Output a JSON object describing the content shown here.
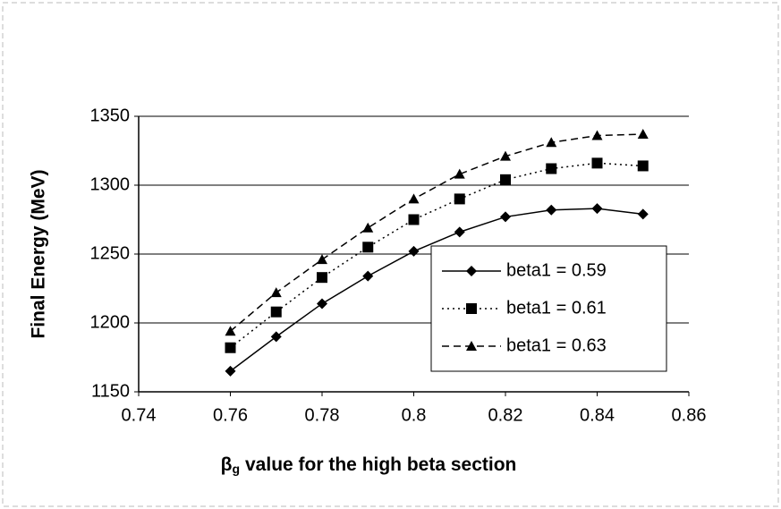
{
  "chart_data": {
    "type": "line",
    "y_label": "Final Energy (MeV)",
    "x_label": {
      "symbol": "β",
      "subscript": "g",
      "text": "value for the high beta section"
    },
    "x": [
      0.76,
      0.77,
      0.78,
      0.79,
      0.8,
      0.81,
      0.82,
      0.83,
      0.84,
      0.85
    ],
    "series": [
      {
        "name": "beta1 = 0.59",
        "color": "#000000",
        "line_style": "solid",
        "marker": "diamond",
        "values": [
          1165,
          1190,
          1214,
          1234,
          1252,
          1266,
          1277,
          1282,
          1283,
          1279
        ]
      },
      {
        "name": "beta1 = 0.61",
        "color": "#000000",
        "line_style": "dotted",
        "marker": "square",
        "values": [
          1182,
          1208,
          1233,
          1255,
          1275,
          1290,
          1304,
          1312,
          1316,
          1314
        ]
      },
      {
        "name": "beta1 = 0.63",
        "color": "#000000",
        "line_style": "dashed",
        "marker": "triangle",
        "values": [
          1194,
          1222,
          1246,
          1269,
          1290,
          1308,
          1321,
          1331,
          1336,
          1337
        ]
      }
    ],
    "xlim": [
      0.74,
      0.86
    ],
    "xticks": [
      0.74,
      0.76,
      0.78,
      0.8,
      0.82,
      0.84,
      0.86
    ],
    "ylim": [
      1150,
      1350
    ],
    "yticks": [
      1150,
      1200,
      1250,
      1300,
      1350
    ],
    "grid": true,
    "legend": "lower right"
  }
}
